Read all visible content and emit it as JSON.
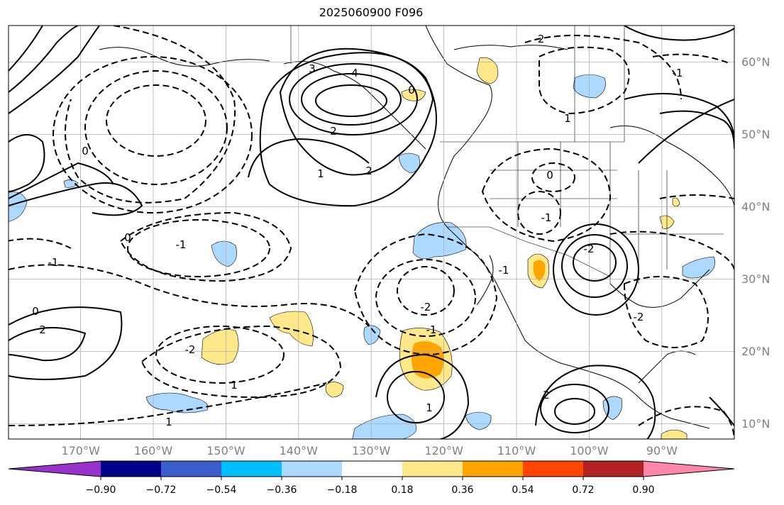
{
  "title": "2025060900 F096",
  "map": {
    "lat_labels": [
      {
        "text": "60°N",
        "value": 60
      },
      {
        "text": "50°N",
        "value": 50
      },
      {
        "text": "40°N",
        "value": 40
      },
      {
        "text": "30°N",
        "value": 30
      },
      {
        "text": "20°N",
        "value": 20
      },
      {
        "text": "10°N",
        "value": 10
      }
    ],
    "lon_labels": [
      {
        "text": "170°W",
        "value": -170
      },
      {
        "text": "160°W",
        "value": -160
      },
      {
        "text": "150°W",
        "value": -150
      },
      {
        "text": "140°W",
        "value": -140
      },
      {
        "text": "130°W",
        "value": -130
      },
      {
        "text": "120°W",
        "value": -120
      },
      {
        "text": "110°W",
        "value": -110
      },
      {
        "text": "100°W",
        "value": -100
      },
      {
        "text": "90°W",
        "value": -90
      }
    ],
    "contour_line_color": "#000000",
    "grid_color": "#b0b0b0"
  },
  "colorbar": {
    "ticks": [
      "−0.90",
      "−0.72",
      "−0.54",
      "−0.36",
      "−0.18",
      "0.18",
      "0.36",
      "0.54",
      "0.72",
      "0.90"
    ],
    "colors": [
      "#9932cc",
      "#00008b",
      "#3a5fcd",
      "#00bfff",
      "#add8ff",
      "#ffffff",
      "#ffe88a",
      "#ffa500",
      "#ff4500",
      "#b22222",
      "#ff88aa"
    ]
  },
  "contour_labels": [
    "-2",
    "-1",
    "0",
    "1",
    "2",
    "3",
    "4",
    "-2",
    "-1",
    "0",
    "1",
    "2",
    "0",
    "-1",
    "-2",
    "1",
    "2",
    "-1",
    "0",
    "1",
    "2",
    "-1",
    "-2",
    "0",
    "1",
    "-2",
    "-1"
  ]
}
